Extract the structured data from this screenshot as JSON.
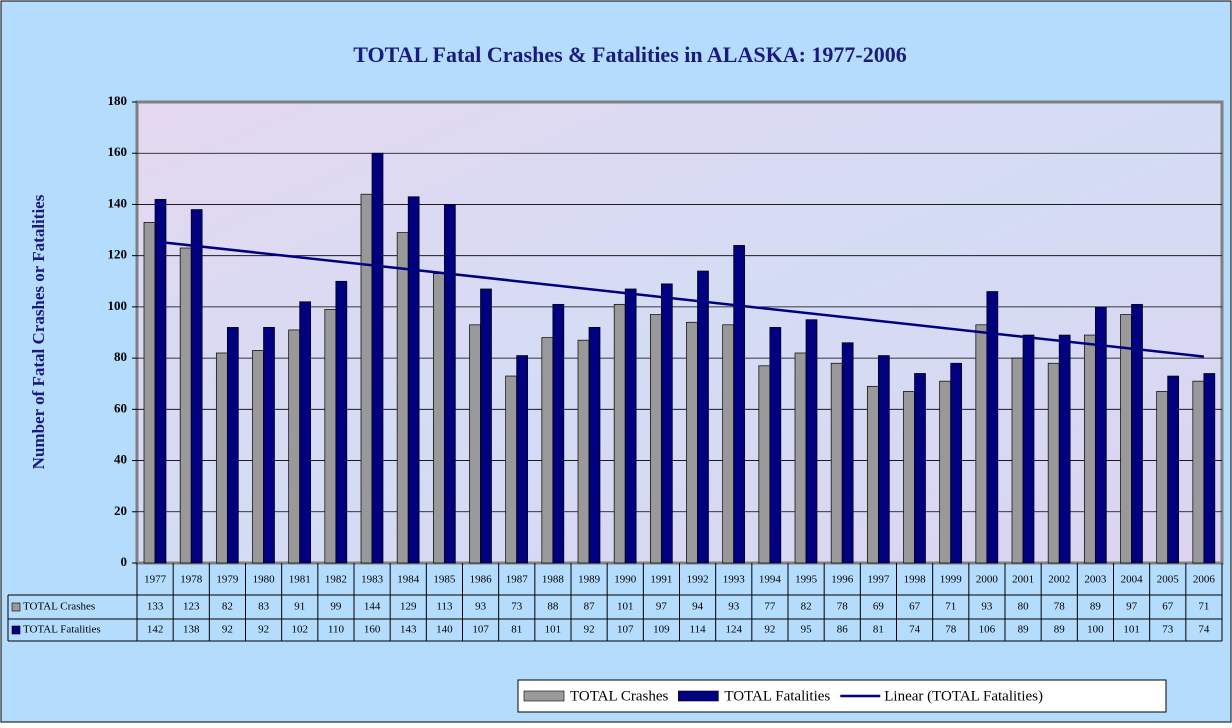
{
  "chart_data": {
    "type": "bar",
    "title": "TOTAL Fatal Crashes & Fatalities in ALASKA: 1977-2006",
    "y_label": "Number of Fatal Crashes or Fatalities",
    "categories": [
      "1977",
      "1978",
      "1979",
      "1980",
      "1981",
      "1982",
      "1983",
      "1984",
      "1985",
      "1986",
      "1987",
      "1988",
      "1989",
      "1990",
      "1991",
      "1992",
      "1993",
      "1994",
      "1995",
      "1996",
      "1997",
      "1998",
      "1999",
      "2000",
      "2001",
      "2002",
      "2003",
      "2004",
      "2005",
      "2006"
    ],
    "series": [
      {
        "name": "TOTAL Crashes",
        "color": "#999999",
        "values": [
          133,
          123,
          82,
          83,
          91,
          99,
          144,
          129,
          113,
          93,
          73,
          88,
          87,
          101,
          97,
          94,
          93,
          77,
          82,
          78,
          69,
          67,
          71,
          93,
          80,
          78,
          89,
          97,
          67,
          71
        ]
      },
      {
        "name": "TOTAL Fatalities",
        "color": "#000080",
        "values": [
          142,
          138,
          92,
          92,
          102,
          110,
          160,
          143,
          140,
          107,
          81,
          101,
          92,
          107,
          109,
          114,
          124,
          92,
          95,
          86,
          81,
          74,
          78,
          106,
          89,
          89,
          100,
          101,
          73,
          74
        ]
      }
    ],
    "trendline": {
      "name": "Linear (TOTAL Fatalities)",
      "type": "linear",
      "series": "TOTAL Fatalities",
      "color": "#000080"
    },
    "ylim": [
      0,
      180
    ],
    "yticks": [
      0,
      20,
      40,
      60,
      80,
      100,
      120,
      140,
      160,
      180
    ],
    "grid": true
  }
}
